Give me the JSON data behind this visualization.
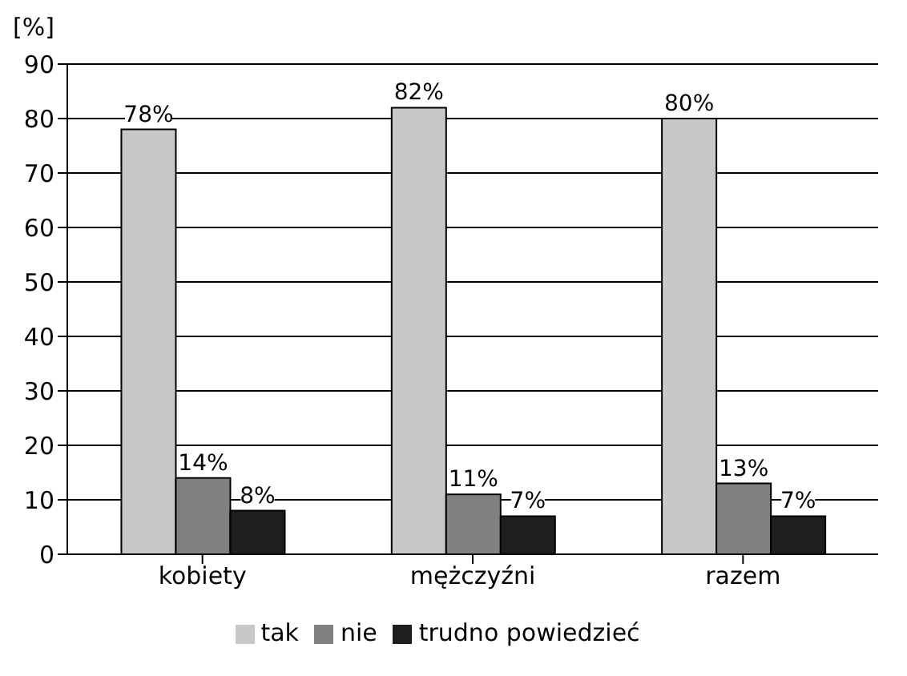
{
  "chart_data": {
    "type": "bar",
    "ylabel": "[%]",
    "categories": [
      "kobiety",
      "mężczyźni",
      "razem"
    ],
    "series": [
      {
        "name": "tak",
        "color": "#c8c8c8",
        "values": [
          78,
          82,
          80
        ],
        "value_labels": [
          "78%",
          "82%",
          "80%"
        ]
      },
      {
        "name": "nie",
        "color": "#808080",
        "values": [
          14,
          11,
          13
        ],
        "value_labels": [
          "14%",
          "11%",
          "13%"
        ]
      },
      {
        "name": "trudno powiedzieć",
        "color": "#1e1e1e",
        "values": [
          8,
          7,
          7
        ],
        "value_labels": [
          "8%",
          "7%",
          "7%"
        ]
      }
    ],
    "ylim": [
      0,
      90
    ],
    "yticks": [
      0,
      10,
      20,
      30,
      40,
      50,
      60,
      70,
      80,
      90
    ],
    "grid": "y",
    "legend": "bottom"
  }
}
